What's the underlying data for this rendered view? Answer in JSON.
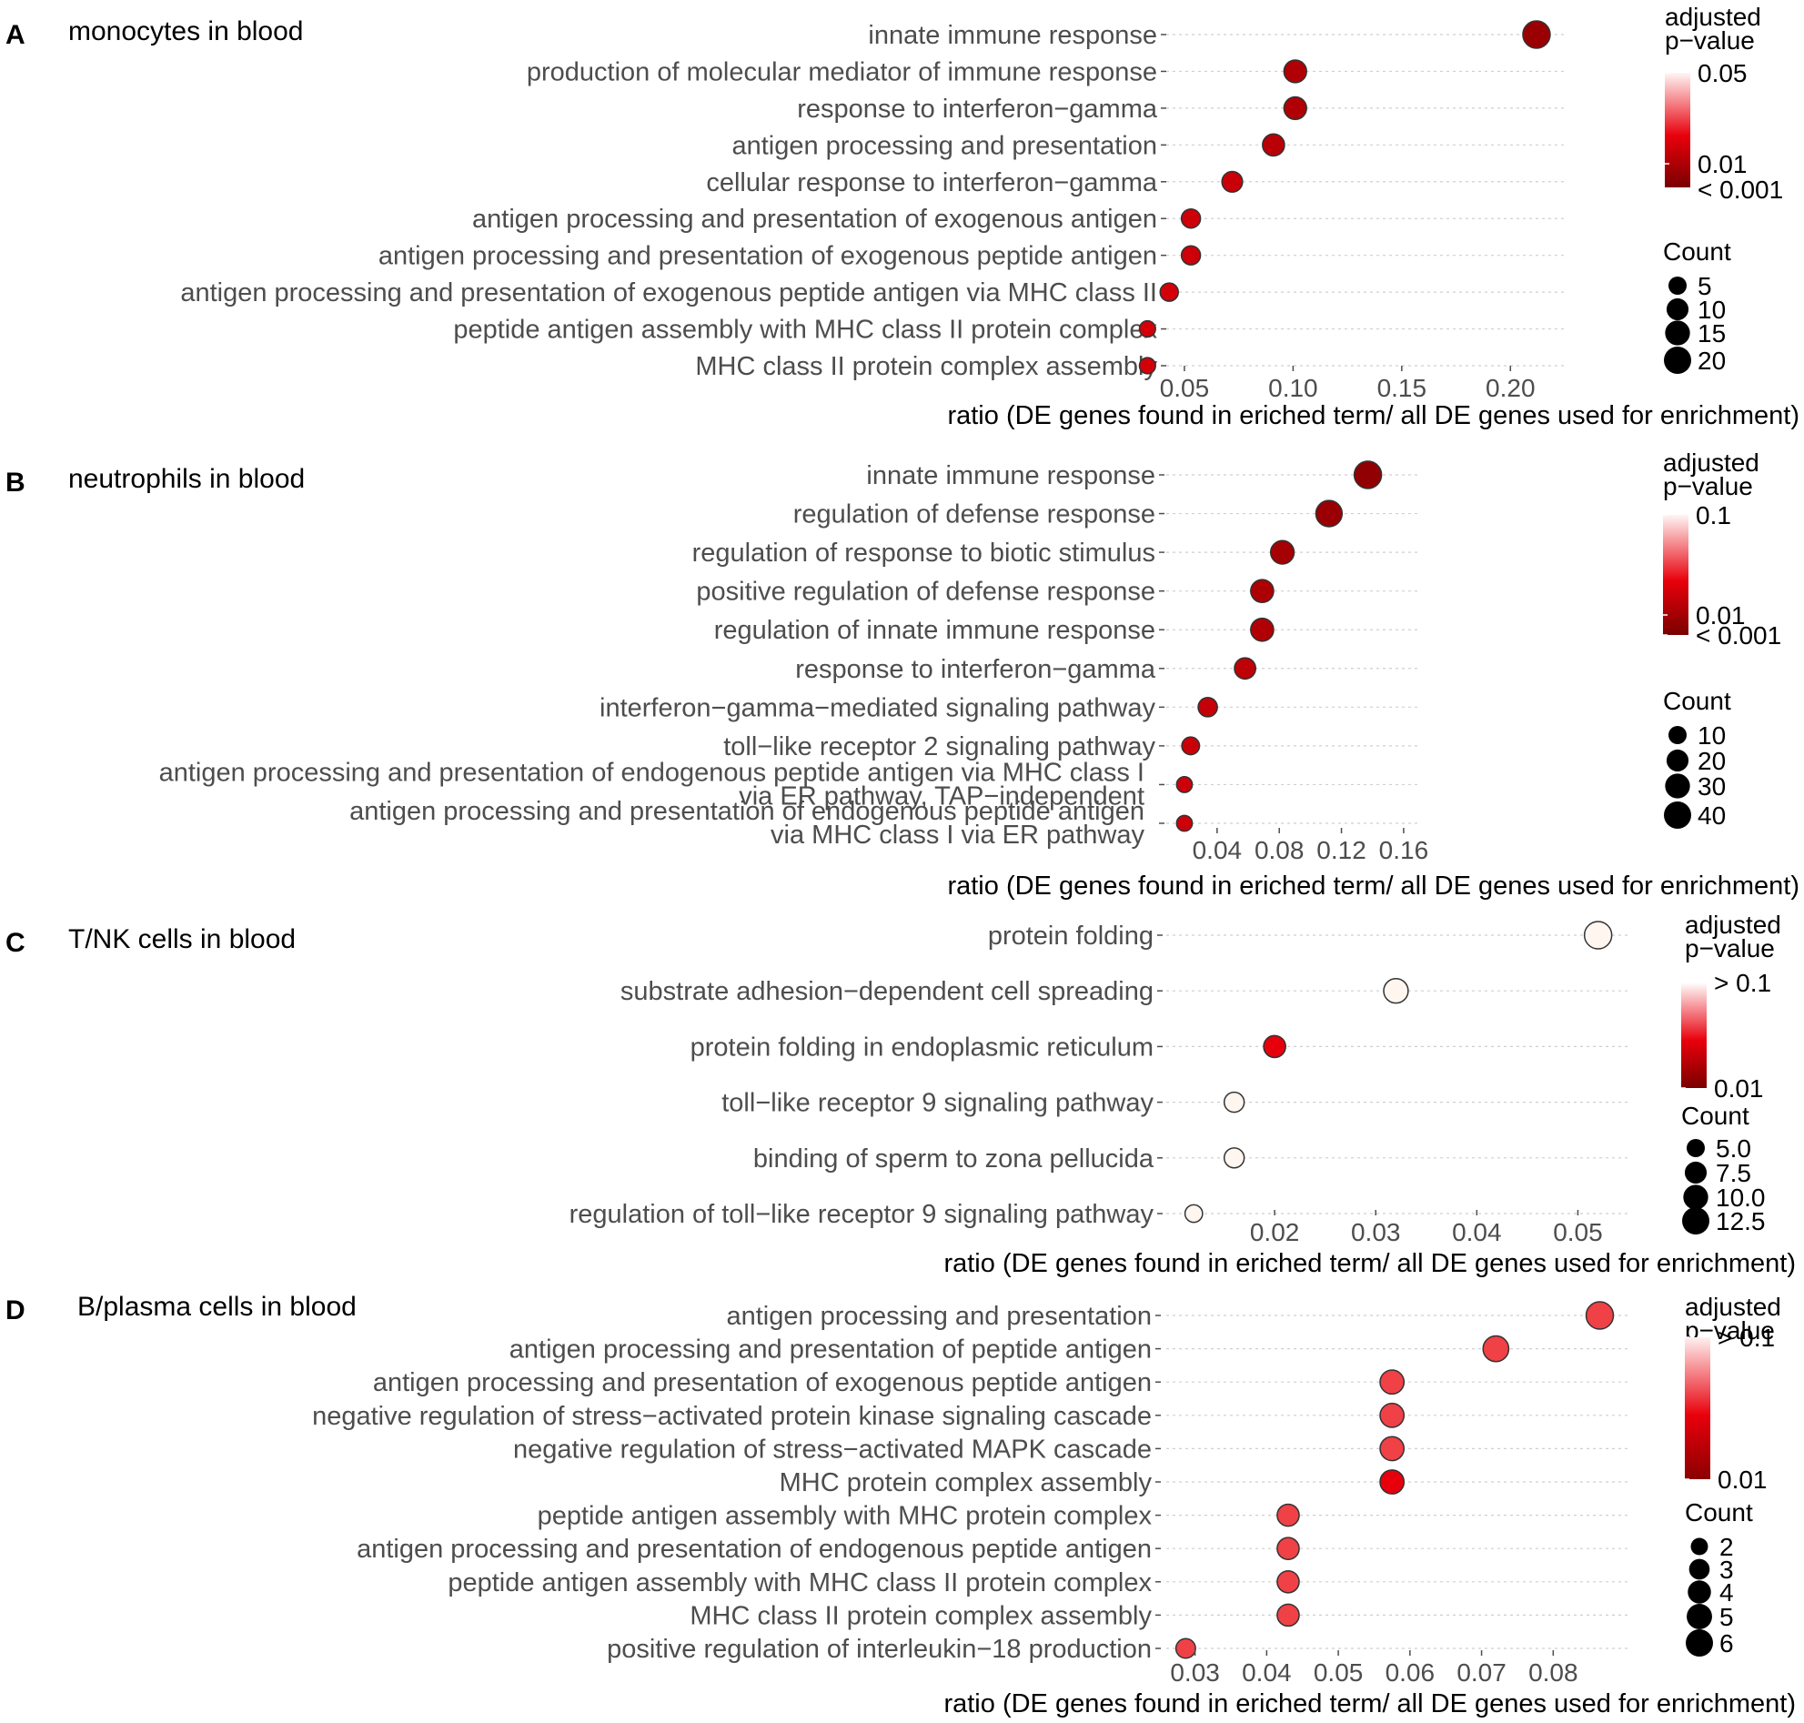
{
  "chart_data": [
    {
      "type": "scatter",
      "panel_label": "A",
      "title": "monocytes in blood",
      "xlabel": "ratio (DE genes found in eriched term/ all DE genes used for enrichment)",
      "xlim": [
        0.045,
        0.225
      ],
      "xticks": [
        0.05,
        0.1,
        0.15,
        0.2
      ],
      "xtick_labels": [
        "0.05",
        "0.10",
        "0.15",
        "0.20"
      ],
      "terms": [
        {
          "label": "innate immune response",
          "ratio": 0.212,
          "count": 20,
          "padj": 0.0003
        },
        {
          "label": "production of molecular mediator of immune response",
          "ratio": 0.101,
          "count": 11,
          "padj": 0.0008
        },
        {
          "label": "response to interferon−gamma",
          "ratio": 0.101,
          "count": 11,
          "padj": 0.0008
        },
        {
          "label": "antigen processing and presentation",
          "ratio": 0.091,
          "count": 10,
          "padj": 0.0012
        },
        {
          "label": "cellular response to interferon−gamma",
          "ratio": 0.072,
          "count": 8,
          "padj": 0.0025
        },
        {
          "label": "antigen processing and presentation of exogenous antigen",
          "ratio": 0.053,
          "count": 6,
          "padj": 0.003
        },
        {
          "label": "antigen processing and presentation of exogenous peptide antigen",
          "ratio": 0.053,
          "count": 6,
          "padj": 0.003
        },
        {
          "label": "antigen processing and presentation of exogenous peptide antigen via MHC class II",
          "ratio": 0.043,
          "count": 5,
          "padj": 0.004
        },
        {
          "label": "peptide antigen assembly with MHC class II protein complex",
          "ratio": 0.033,
          "count": 3,
          "padj": 0.004
        },
        {
          "label": "MHC class II protein complex assembly",
          "ratio": 0.033,
          "count": 3,
          "padj": 0.004
        }
      ],
      "color_legend": {
        "title_line1": "adjusted",
        "title_line2": "p−value",
        "labels": [
          "0.05",
          "0.01",
          "< 0.001"
        ]
      },
      "size_legend": {
        "title": "Count",
        "labels": [
          "5",
          "10",
          "15",
          "20"
        ]
      }
    },
    {
      "type": "scatter",
      "panel_label": "B",
      "title": "neutrophils in blood",
      "xlabel": "ratio (DE genes found in eriched term/ all DE genes used for enrichment)",
      "xlim": [
        0.012,
        0.17
      ],
      "xticks": [
        0.04,
        0.08,
        0.12,
        0.16
      ],
      "xtick_labels": [
        "0.04",
        "0.08",
        "0.12",
        "0.16"
      ],
      "terms": [
        {
          "label": "innate immune response",
          "label2": "",
          "ratio": 0.137,
          "count": 45,
          "padj": 0.0002
        },
        {
          "label": "regulation of defense response",
          "label2": "",
          "ratio": 0.112,
          "count": 40,
          "padj": 0.0003
        },
        {
          "label": "regulation of response to biotic stimulus",
          "label2": "",
          "ratio": 0.082,
          "count": 28,
          "padj": 0.0005
        },
        {
          "label": "positive regulation of defense response",
          "label2": "",
          "ratio": 0.069,
          "count": 26,
          "padj": 0.0007
        },
        {
          "label": "regulation of innate immune response",
          "label2": "",
          "ratio": 0.069,
          "count": 26,
          "padj": 0.0008
        },
        {
          "label": "response to interferon−gamma",
          "label2": "",
          "ratio": 0.058,
          "count": 20,
          "padj": 0.0015
        },
        {
          "label": "interferon−gamma−mediated signaling pathway",
          "label2": "",
          "ratio": 0.034,
          "count": 14,
          "padj": 0.002
        },
        {
          "label": "toll−like receptor 2 signaling pathway",
          "label2": "",
          "ratio": 0.023,
          "count": 10,
          "padj": 0.0025
        },
        {
          "label": "antigen processing and presentation of endogenous peptide antigen via MHC class I",
          "label2": "via ER pathway, TAP−independent",
          "ratio": 0.019,
          "count": 6,
          "padj": 0.003
        },
        {
          "label": "antigen processing and presentation of endogenous peptide antigen",
          "label2": "via MHC class I via ER pathway",
          "ratio": 0.019,
          "count": 6,
          "padj": 0.003
        }
      ],
      "color_legend": {
        "title_line1": "adjusted",
        "title_line2": "p−value",
        "labels": [
          "0.1",
          "0.01",
          "< 0.001"
        ]
      },
      "size_legend": {
        "title": "Count",
        "labels": [
          "10",
          "20",
          "30",
          "40"
        ]
      }
    },
    {
      "type": "scatter",
      "panel_label": "C",
      "title": "T/NK cells in blood",
      "xlabel": "ratio (DE genes found in eriched term/ all DE genes used for enrichment)",
      "xlim": [
        0.01,
        0.055
      ],
      "xticks": [
        0.02,
        0.03,
        0.04,
        0.05
      ],
      "xtick_labels": [
        "0.02",
        "0.03",
        "0.04",
        "0.05"
      ],
      "terms": [
        {
          "label": "protein folding",
          "ratio": 0.052,
          "count": 14,
          "padj": 0.15
        },
        {
          "label": "substrate adhesion−dependent cell spreading",
          "ratio": 0.032,
          "count": 10,
          "padj": 0.15
        },
        {
          "label": "protein folding in endoplasmic reticulum",
          "ratio": 0.02,
          "count": 7,
          "padj": 0.01
        },
        {
          "label": "toll−like receptor 9 signaling pathway",
          "ratio": 0.016,
          "count": 5,
          "padj": 0.15
        },
        {
          "label": "binding of sperm to zona pellucida",
          "ratio": 0.016,
          "count": 5,
          "padj": 0.15
        },
        {
          "label": "regulation of toll−like receptor 9 signaling pathway",
          "ratio": 0.012,
          "count": 3,
          "padj": 0.15
        }
      ],
      "color_legend": {
        "title_line1": "adjusted",
        "title_line2": "p−value",
        "labels": [
          "> 0.1",
          "0.01"
        ]
      },
      "size_legend": {
        "title": "Count",
        "labels": [
          "5.0",
          "7.5",
          "10.0",
          "12.5"
        ]
      }
    },
    {
      "type": "scatter",
      "panel_label": "D",
      "title": "B/plasma cells in blood",
      "xlabel": "ratio (DE genes found in eriched term/ all DE genes used for enrichment)",
      "xlim": [
        0.027,
        0.0905
      ],
      "xticks": [
        0.03,
        0.04,
        0.05,
        0.06,
        0.07,
        0.08
      ],
      "xtick_labels": [
        "0.03",
        "0.04",
        "0.05",
        "0.06",
        "0.07",
        "0.08"
      ],
      "terms": [
        {
          "label": "antigen processing and presentation",
          "ratio": 0.0865,
          "count": 6,
          "padj": 0.02
        },
        {
          "label": "antigen processing and presentation of peptide antigen",
          "ratio": 0.072,
          "count": 5,
          "padj": 0.02
        },
        {
          "label": "antigen processing and presentation of exogenous peptide antigen",
          "ratio": 0.0575,
          "count": 4,
          "padj": 0.02
        },
        {
          "label": "negative regulation of stress−activated protein kinase signaling cascade",
          "ratio": 0.0575,
          "count": 4,
          "padj": 0.02
        },
        {
          "label": "negative regulation of stress−activated MAPK cascade",
          "ratio": 0.0575,
          "count": 4,
          "padj": 0.02
        },
        {
          "label": "MHC protein complex assembly",
          "ratio": 0.0575,
          "count": 4,
          "padj": 0.01
        },
        {
          "label": "peptide antigen assembly with MHC protein complex",
          "ratio": 0.043,
          "count": 3,
          "padj": 0.02
        },
        {
          "label": "antigen processing and presentation of endogenous peptide antigen",
          "ratio": 0.043,
          "count": 3,
          "padj": 0.02
        },
        {
          "label": "peptide antigen assembly with MHC class II protein complex",
          "ratio": 0.043,
          "count": 3,
          "padj": 0.02
        },
        {
          "label": "MHC class II protein complex assembly",
          "ratio": 0.043,
          "count": 3,
          "padj": 0.02
        },
        {
          "label": "positive regulation of interleukin−18 production",
          "ratio": 0.0287,
          "count": 2,
          "padj": 0.02
        }
      ],
      "color_legend": {
        "title_line1": "adjusted",
        "title_line2": "p−value",
        "labels": [
          "> 0.1",
          "0.01"
        ]
      },
      "size_legend": {
        "title": "Count",
        "labels": [
          "2",
          "3",
          "4",
          "5",
          "6"
        ]
      }
    }
  ]
}
